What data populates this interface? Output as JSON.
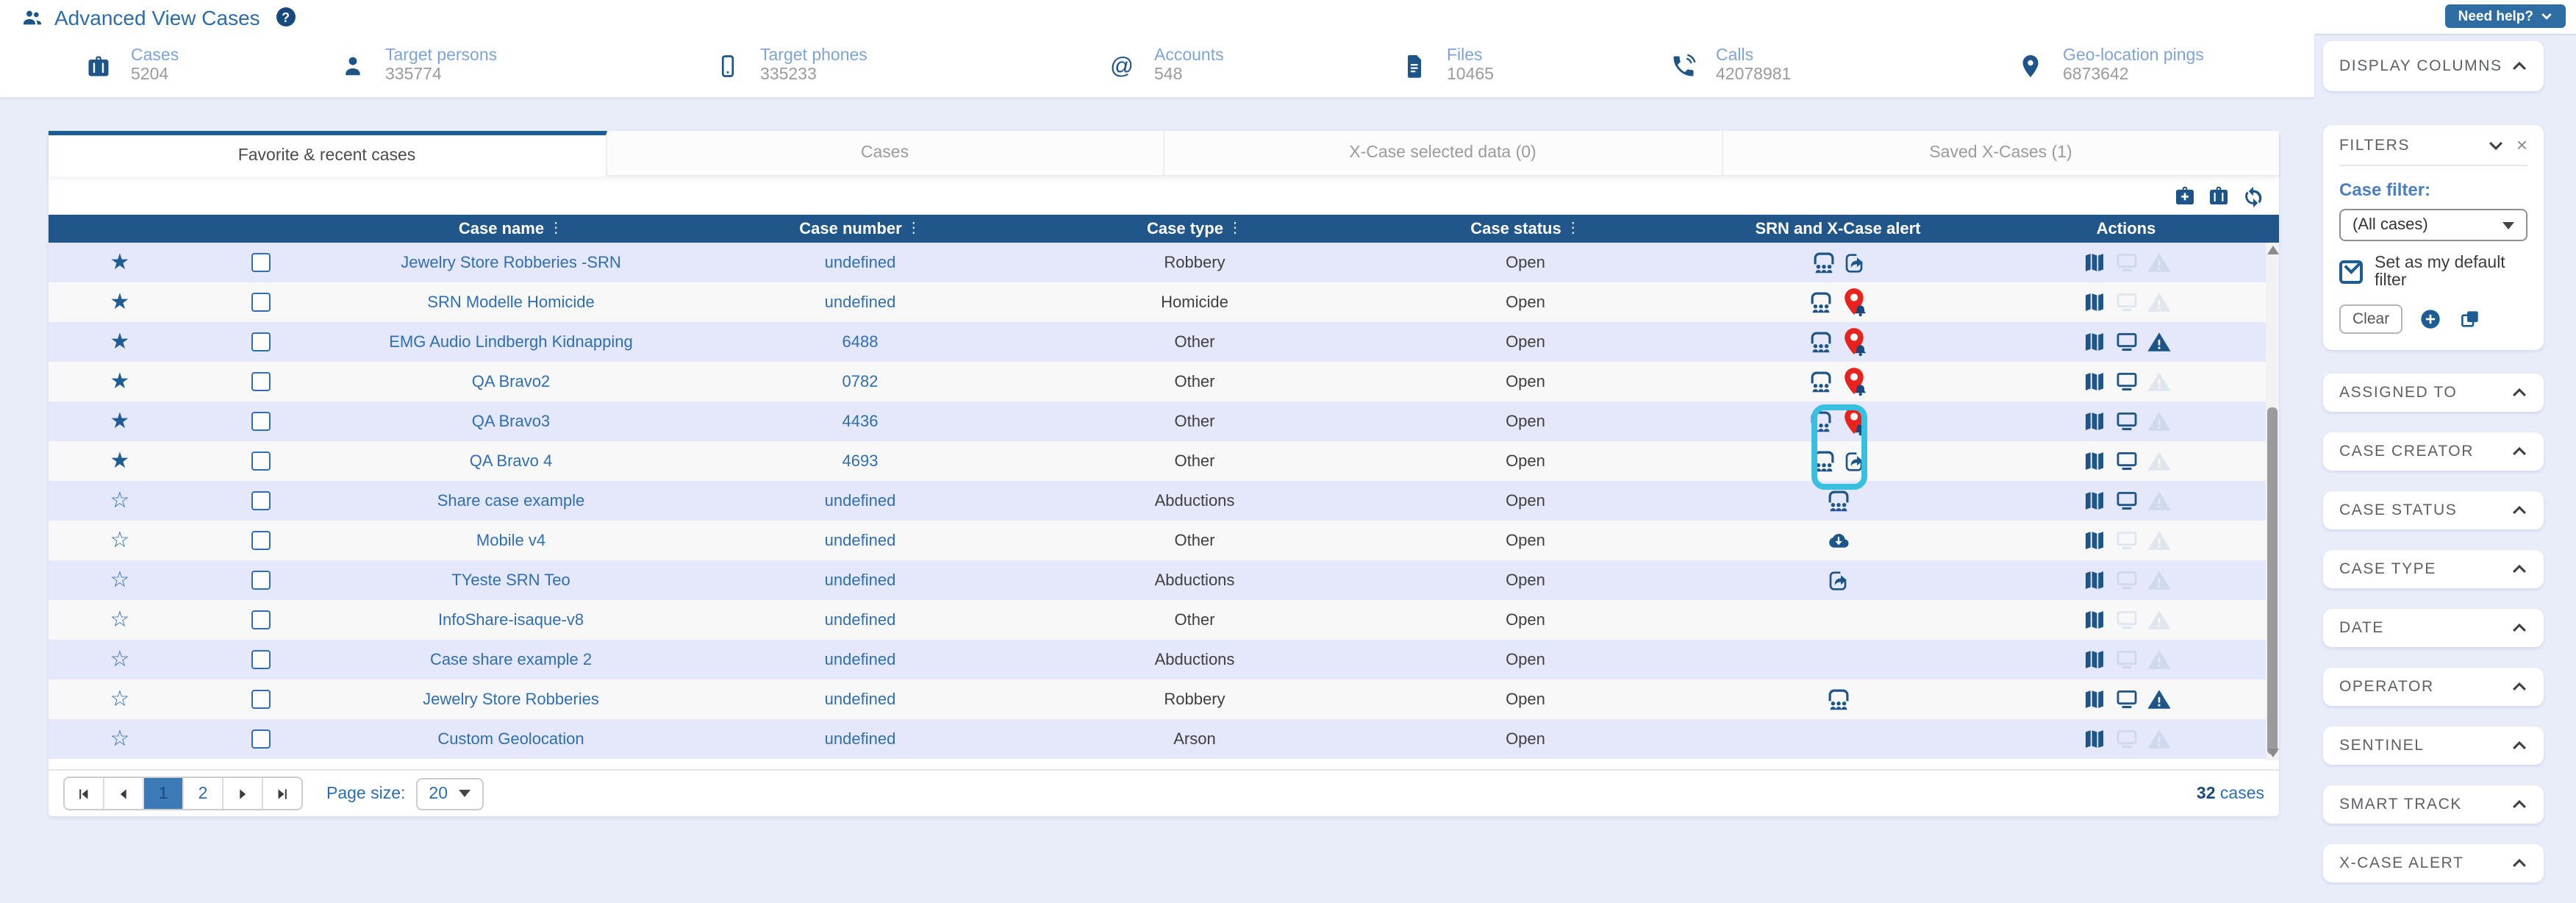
{
  "header": {
    "title": "Advanced View Cases",
    "help_button": "Need help?"
  },
  "stats": [
    {
      "icon": "briefcase-icon",
      "label": "Cases",
      "value": "5204"
    },
    {
      "icon": "person-icon",
      "label": "Target persons",
      "value": "335774"
    },
    {
      "icon": "mobile-phone-icon",
      "label": "Target phones",
      "value": "335233"
    },
    {
      "icon": "at-sign-icon",
      "label": "Accounts",
      "value": "548"
    },
    {
      "icon": "file-icon",
      "label": "Files",
      "value": "10465"
    },
    {
      "icon": "call-icon",
      "label": "Calls",
      "value": "42078981"
    },
    {
      "icon": "geo-pin-icon",
      "label": "Geo-location pings",
      "value": "6873642"
    }
  ],
  "tabs": [
    {
      "label": "Favorite & recent cases",
      "active": true
    },
    {
      "label": "Cases",
      "active": false
    },
    {
      "label": "X-Case selected data (0)",
      "active": false
    },
    {
      "label": "Saved X-Cases (1)",
      "active": false
    }
  ],
  "toolbar": {
    "icons": [
      "add-case-icon",
      "cases-icon",
      "refresh-icon"
    ]
  },
  "table": {
    "columns": [
      {
        "label": "Case name",
        "sortable": true
      },
      {
        "label": "Case number",
        "sortable": true
      },
      {
        "label": "Case type",
        "sortable": true
      },
      {
        "label": "Case status",
        "sortable": true
      },
      {
        "label": "SRN and X-Case alert",
        "sortable": false
      },
      {
        "label": "Actions",
        "sortable": false
      }
    ],
    "rows": [
      {
        "favorite": true,
        "name": "Jewelry Store Robberies -SRN",
        "number": "undefined",
        "type": "Robbery",
        "status": "Open",
        "srn_icons": [
          "srn",
          "share"
        ],
        "monitor": false,
        "warning": false,
        "highlight": false
      },
      {
        "favorite": true,
        "name": "SRN Modelle Homicide",
        "number": "undefined",
        "type": "Homicide",
        "status": "Open",
        "srn_icons": [
          "srn",
          "pin"
        ],
        "monitor": false,
        "warning": false,
        "highlight": false
      },
      {
        "favorite": true,
        "name": "EMG Audio Lindbergh Kidnapping",
        "number": "6488",
        "type": "Other",
        "status": "Open",
        "srn_icons": [
          "srn",
          "pin"
        ],
        "monitor": true,
        "warning": true,
        "highlight": false
      },
      {
        "favorite": true,
        "name": "QA Bravo2",
        "number": "0782",
        "type": "Other",
        "status": "Open",
        "srn_icons": [
          "srn",
          "pin"
        ],
        "monitor": true,
        "warning": false,
        "highlight": false
      },
      {
        "favorite": true,
        "name": "QA Bravo3",
        "number": "4436",
        "type": "Other",
        "status": "Open",
        "srn_icons": [
          "srn",
          "pin"
        ],
        "monitor": true,
        "warning": false,
        "highlight": false
      },
      {
        "favorite": true,
        "name": "QA Bravo 4",
        "number": "4693",
        "type": "Other",
        "status": "Open",
        "srn_icons": [
          "srn",
          "share"
        ],
        "monitor": true,
        "warning": false,
        "highlight": false
      },
      {
        "favorite": false,
        "name": "Share case example",
        "number": "undefined",
        "type": "Abductions",
        "status": "Open",
        "srn_icons": [
          "srn"
        ],
        "monitor": true,
        "warning": false,
        "highlight": false
      },
      {
        "favorite": false,
        "name": "Mobile v4",
        "number": "undefined",
        "type": "Other",
        "status": "Open",
        "srn_icons": [
          "cloud"
        ],
        "monitor": false,
        "warning": false,
        "highlight": true
      },
      {
        "favorite": false,
        "name": "TYeste SRN Teo",
        "number": "undefined",
        "type": "Abductions",
        "status": "Open",
        "srn_icons": [
          "share"
        ],
        "monitor": false,
        "warning": false,
        "highlight": true
      },
      {
        "favorite": false,
        "name": "InfoShare-isaque-v8",
        "number": "undefined",
        "type": "Other",
        "status": "Open",
        "srn_icons": [],
        "monitor": false,
        "warning": false,
        "highlight": false
      },
      {
        "favorite": false,
        "name": "Case share example 2",
        "number": "undefined",
        "type": "Abductions",
        "status": "Open",
        "srn_icons": [],
        "monitor": false,
        "warning": false,
        "highlight": false
      },
      {
        "favorite": false,
        "name": "Jewelry Store Robberies",
        "number": "undefined",
        "type": "Robbery",
        "status": "Open",
        "srn_icons": [
          "srn"
        ],
        "monitor": true,
        "warning": true,
        "highlight": false
      },
      {
        "favorite": false,
        "name": "Custom Geolocation",
        "number": "undefined",
        "type": "Arson",
        "status": "Open",
        "srn_icons": [],
        "monitor": false,
        "warning": false,
        "highlight": false
      }
    ]
  },
  "pagination": {
    "pages": [
      "1",
      "2"
    ],
    "current": "1",
    "page_size_label": "Page size:",
    "page_size": "20",
    "total_count": "32",
    "total_label": "cases"
  },
  "sidebar": {
    "display_columns_title": "DISPLAY COLUMNS",
    "filters": {
      "title": "FILTERS",
      "case_filter_label": "Case filter:",
      "case_filter_value": "(All cases)",
      "default_checkbox_label": "Set as my default filter",
      "default_checkbox_checked": true,
      "clear_label": "Clear"
    },
    "sections": [
      "ASSIGNED TO",
      "CASE CREATOR",
      "CASE STATUS",
      "CASE TYPE",
      "DATE",
      "OPERATOR",
      "SENTINEL",
      "SMART TRACK",
      "X-CASE ALERT"
    ]
  },
  "colors": {
    "primary_blue": "#1e5c94",
    "icon_blue": "#1d5588",
    "table_header_bg": "#20568a",
    "row_alt_bg": "#e4e8fa",
    "link_blue": "#2f6eb2",
    "alert_red": "#e8231d",
    "highlight_teal": "#39bfe0",
    "help_button_bg": "#2e6da4"
  }
}
